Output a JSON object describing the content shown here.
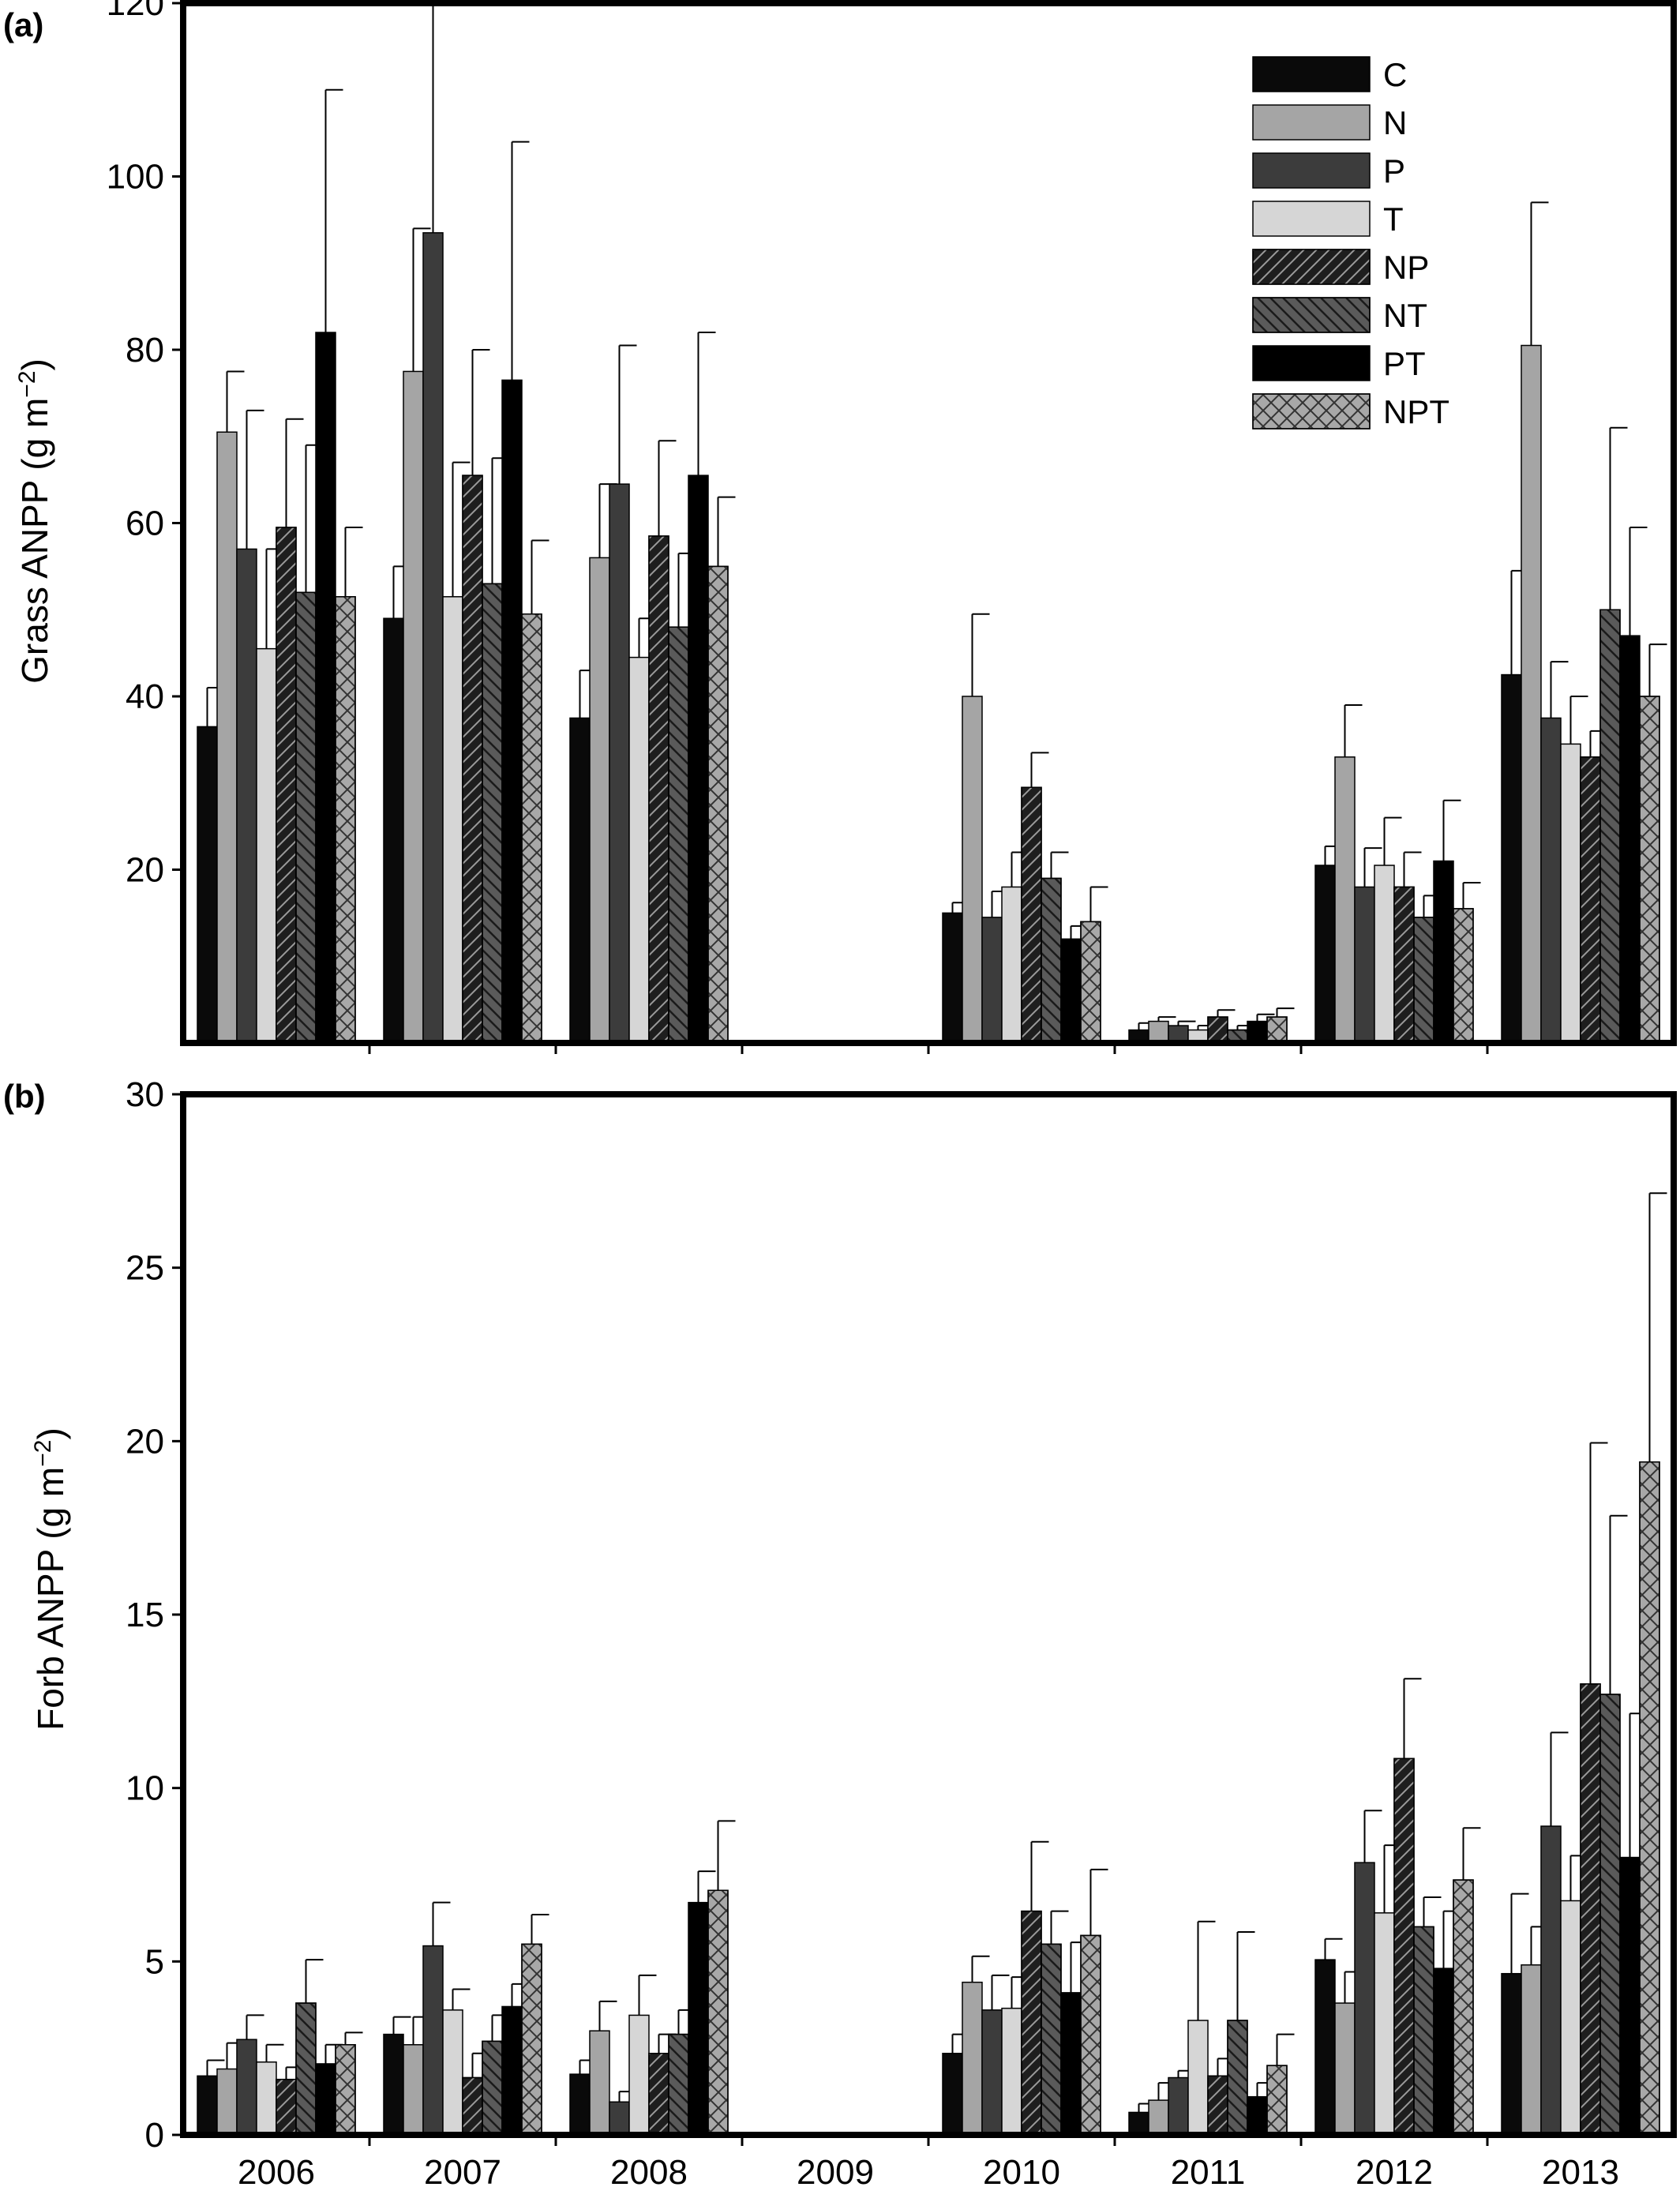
{
  "chart_data": [
    {
      "panel_label": "(a)",
      "type": "bar",
      "ylabel_main": "Grass ANPP (g m",
      "ylabel_sup": "−2",
      "ylabel_close": ")",
      "ylim": [
        0,
        120
      ],
      "yticks": [
        20,
        40,
        60,
        80,
        100,
        120
      ],
      "categories": [
        "2006",
        "2007",
        "2008",
        "2009",
        "2010",
        "2011",
        "2012",
        "2013"
      ],
      "legend_position": "top-right",
      "series": [
        {
          "name": "C",
          "values": [
            36.5,
            49,
            37.5,
            null,
            15,
            1.5,
            20.5,
            42.5
          ],
          "errors": [
            4.5,
            6,
            5.5,
            null,
            1.2,
            0.8,
            2.2,
            12
          ]
        },
        {
          "name": "N",
          "values": [
            70.5,
            77.5,
            56,
            null,
            40,
            2.5,
            33,
            80.5
          ],
          "errors": [
            7,
            16.5,
            8.5,
            null,
            9.5,
            0.5,
            6,
            16.5
          ]
        },
        {
          "name": "P",
          "values": [
            57,
            93.5,
            64.5,
            null,
            14.5,
            2,
            18,
            37.5
          ],
          "errors": [
            16,
            27,
            16,
            null,
            3,
            0.5,
            4.5,
            6.5
          ]
        },
        {
          "name": "T",
          "values": [
            45.5,
            51.5,
            44.5,
            null,
            18,
            1.5,
            20.5,
            34.5
          ],
          "errors": [
            11.5,
            15.5,
            4.5,
            null,
            4,
            0.5,
            5.5,
            5.5
          ]
        },
        {
          "name": "NP",
          "values": [
            59.5,
            65.5,
            58.5,
            null,
            29.5,
            3,
            18,
            33
          ],
          "errors": [
            12.5,
            14.5,
            11,
            null,
            4,
            0.8,
            4,
            3
          ]
        },
        {
          "name": "NT",
          "values": [
            52,
            53,
            48,
            null,
            19,
            1.5,
            14.5,
            50
          ],
          "errors": [
            17,
            14.5,
            8.5,
            null,
            3,
            0.5,
            2.5,
            21
          ]
        },
        {
          "name": "PT",
          "values": [
            82,
            76.5,
            65.5,
            null,
            12,
            2.5,
            21,
            47
          ],
          "errors": [
            28,
            27.5,
            16.5,
            null,
            1.5,
            0.8,
            7,
            12.5
          ]
        },
        {
          "name": "NPT",
          "values": [
            51.5,
            49.5,
            55,
            null,
            14,
            3,
            15.5,
            40
          ],
          "errors": [
            8,
            8.5,
            8,
            null,
            4,
            1,
            3,
            6
          ]
        }
      ]
    },
    {
      "panel_label": "(b)",
      "type": "bar",
      "ylabel_main": "Forb ANPP (g m",
      "ylabel_sup": "−2",
      "ylabel_close": ")",
      "ylim": [
        0,
        30
      ],
      "yticks": [
        0,
        5,
        10,
        15,
        20,
        25,
        30
      ],
      "categories": [
        "2006",
        "2007",
        "2008",
        "2009",
        "2010",
        "2011",
        "2012",
        "2013"
      ],
      "series": [
        {
          "name": "C",
          "values": [
            1.7,
            2.9,
            1.75,
            null,
            2.35,
            0.65,
            5.05,
            4.65
          ],
          "errors": [
            0.45,
            0.5,
            0.4,
            null,
            0.55,
            0.25,
            0.6,
            2.3
          ]
        },
        {
          "name": "N",
          "values": [
            1.9,
            2.6,
            3.0,
            null,
            4.4,
            1.0,
            3.8,
            4.9
          ],
          "errors": [
            0.75,
            0.8,
            0.85,
            null,
            0.75,
            0.5,
            0.9,
            1.1
          ]
        },
        {
          "name": "P",
          "values": [
            2.75,
            5.45,
            0.95,
            null,
            3.6,
            1.65,
            7.85,
            8.9
          ],
          "errors": [
            0.7,
            1.25,
            0.3,
            null,
            1.0,
            0.2,
            1.5,
            2.7
          ]
        },
        {
          "name": "T",
          "values": [
            2.1,
            3.6,
            3.45,
            null,
            3.65,
            3.3,
            6.4,
            6.75
          ],
          "errors": [
            0.5,
            0.6,
            1.15,
            null,
            0.9,
            2.85,
            1.95,
            1.3
          ]
        },
        {
          "name": "NP",
          "values": [
            1.6,
            1.65,
            2.35,
            null,
            6.45,
            1.7,
            10.85,
            13.0
          ],
          "errors": [
            0.35,
            0.7,
            0.55,
            null,
            2.0,
            0.5,
            2.3,
            6.95
          ]
        },
        {
          "name": "NT",
          "values": [
            3.8,
            2.7,
            2.9,
            null,
            5.5,
            3.3,
            6.0,
            12.7
          ],
          "errors": [
            1.25,
            0.75,
            0.7,
            null,
            0.95,
            2.55,
            0.85,
            5.15
          ]
        },
        {
          "name": "PT",
          "values": [
            2.05,
            3.7,
            6.7,
            null,
            4.1,
            1.1,
            4.8,
            8.0
          ],
          "errors": [
            0.55,
            0.65,
            0.9,
            null,
            1.45,
            0.4,
            1.65,
            4.15
          ]
        },
        {
          "name": "NPT",
          "values": [
            2.6,
            5.5,
            7.05,
            null,
            5.75,
            2.0,
            7.35,
            19.4
          ],
          "errors": [
            0.35,
            0.85,
            2.0,
            null,
            1.9,
            0.9,
            1.5,
            7.75
          ]
        }
      ]
    }
  ],
  "series_styles": [
    {
      "fill": "#0a0a0a",
      "pattern": "none"
    },
    {
      "fill": "#a5a5a5",
      "pattern": "none"
    },
    {
      "fill": "#3c3c3c",
      "pattern": "none"
    },
    {
      "fill": "#d6d6d6",
      "pattern": "none"
    },
    {
      "fill": "#1e1e1e",
      "pattern": "fwd-hatch"
    },
    {
      "fill": "#5a5a5a",
      "pattern": "back-hatch"
    },
    {
      "fill": "#000000",
      "pattern": "none"
    },
    {
      "fill": "#a8a8a8",
      "pattern": "cross-hatch"
    }
  ]
}
